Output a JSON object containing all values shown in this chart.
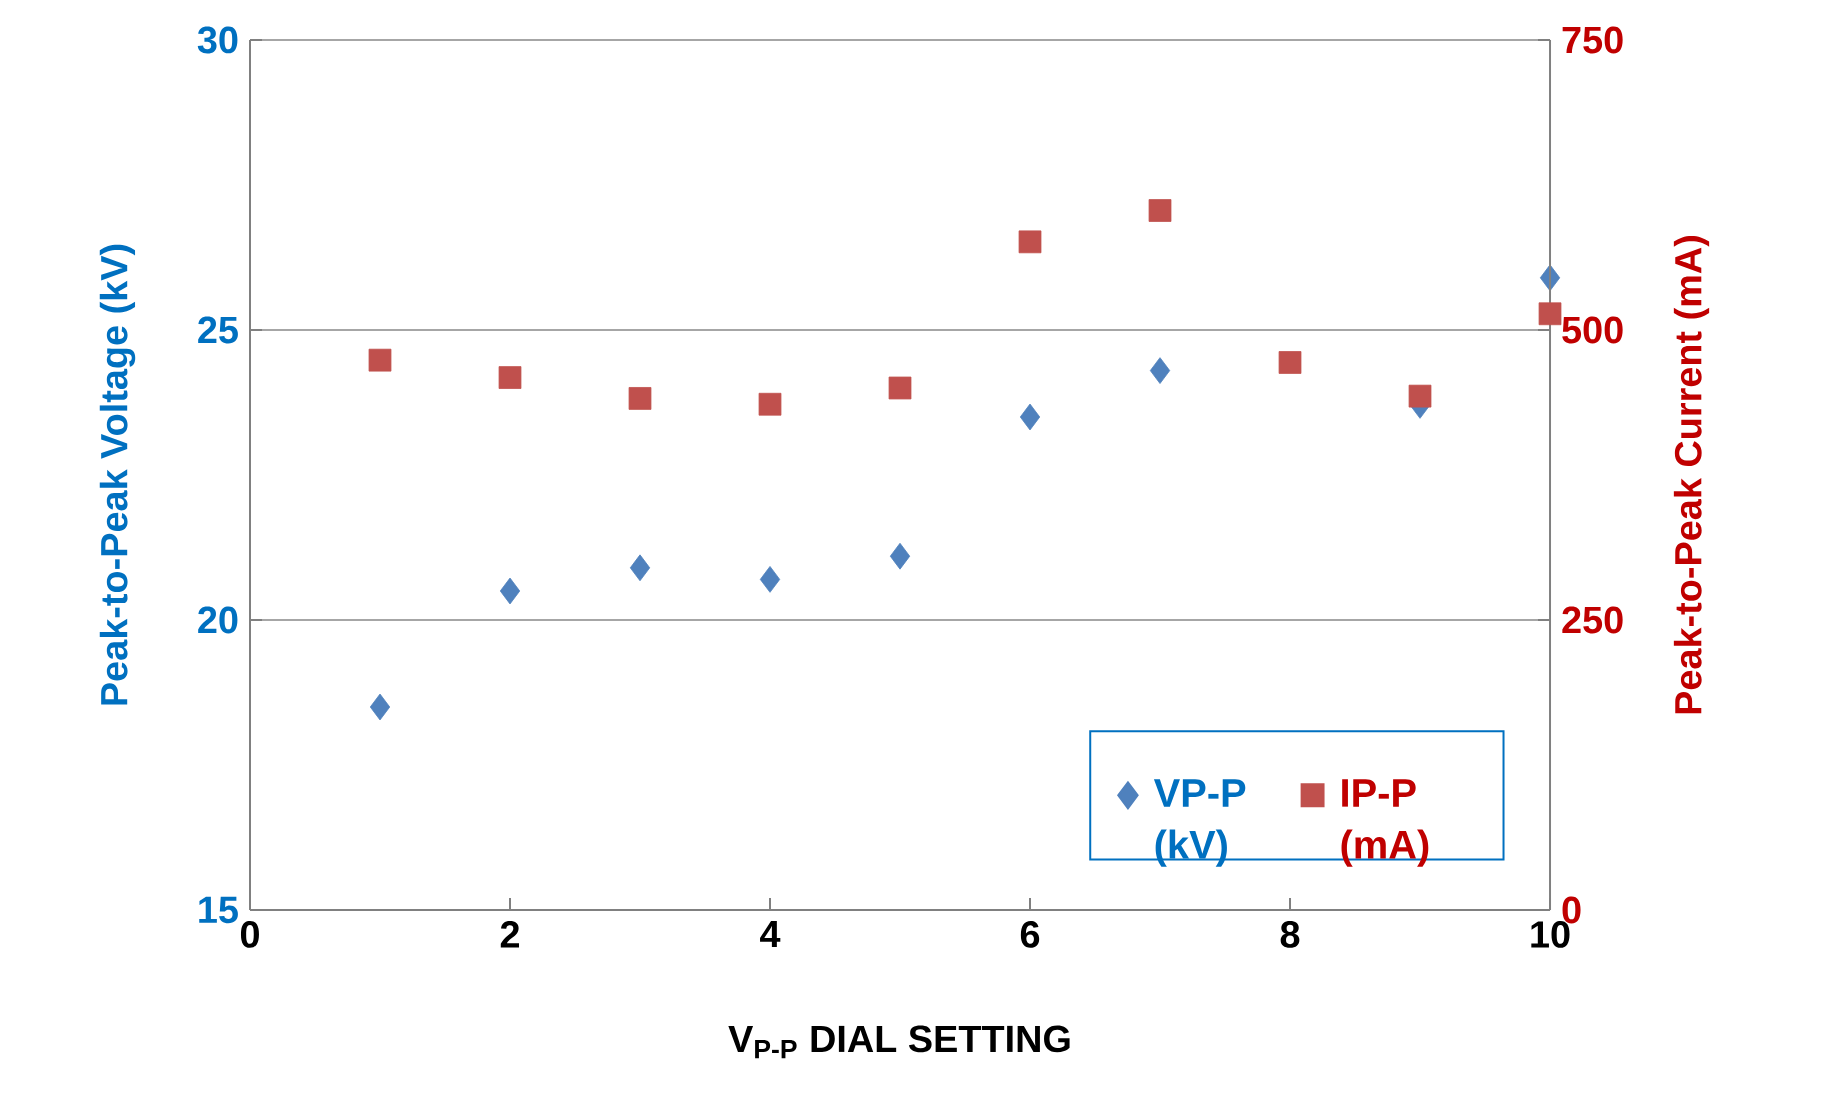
{
  "chart_data": {
    "type": "scatter",
    "xlabel": "V$_{P-P}$ DIAL SETTING",
    "ylabel": "Peak-to-Peak Voltage (kV)",
    "y2label": "Peak-to-Peak Current (mA)",
    "x": [
      1,
      2,
      3,
      4,
      5,
      6,
      7,
      8,
      9,
      10
    ],
    "series": [
      {
        "name": "VP-P (kV)",
        "color": "#4f81bd",
        "marker": "diamond",
        "values": [
          18.5,
          20.5,
          20.9,
          20.7,
          21.1,
          23.5,
          24.3,
          null,
          23.7,
          25.9
        ]
      },
      {
        "name": "IP-P (mA)",
        "color": "#c0504d",
        "marker": "square",
        "axis": "y2",
        "values": [
          474,
          459,
          441,
          436,
          450,
          576,
          603,
          472,
          443,
          514
        ]
      }
    ],
    "xlim": [
      0,
      10
    ],
    "xticks": [
      0,
      2,
      4,
      6,
      8,
      10
    ],
    "ylim": [
      15,
      30
    ],
    "yticks": [
      15,
      20,
      25,
      30
    ],
    "y2lim": [
      0,
      750
    ],
    "y2ticks": [
      0,
      250,
      500,
      750
    ],
    "grid": "y",
    "legend": "bottom right"
  }
}
